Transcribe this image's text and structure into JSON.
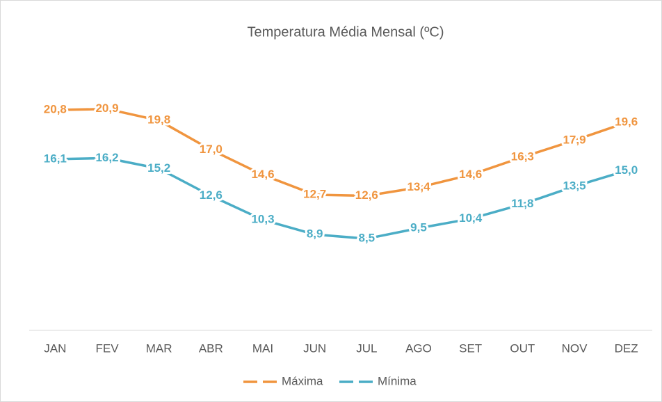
{
  "chart_data": {
    "type": "line",
    "title": "Temperatura Média Mensal (ºC)",
    "categories": [
      "JAN",
      "FEV",
      "MAR",
      "ABR",
      "MAI",
      "JUN",
      "JUL",
      "AGO",
      "SET",
      "OUT",
      "NOV",
      "DEZ"
    ],
    "series": [
      {
        "name": "Máxima",
        "color": "#f0953f",
        "values": [
          20.8,
          20.9,
          19.8,
          17.0,
          14.6,
          12.7,
          12.6,
          13.4,
          14.6,
          16.3,
          17.9,
          19.6
        ],
        "value_labels": [
          "20,8",
          "20,9",
          "19,8",
          "17,0",
          "14,6",
          "12,7",
          "12,6",
          "13,4",
          "14,6",
          "16,3",
          "17,9",
          "19,6"
        ]
      },
      {
        "name": "Mínima",
        "color": "#4badc6",
        "values": [
          16.1,
          16.2,
          15.2,
          12.6,
          10.3,
          8.9,
          8.5,
          9.5,
          10.4,
          11.8,
          13.5,
          15.0
        ],
        "value_labels": [
          "16,1",
          "16,2",
          "15,2",
          "12,6",
          "10,3",
          "8,9",
          "8,5",
          "9,5",
          "10,4",
          "11,8",
          "13,5",
          "15,0"
        ]
      }
    ],
    "ylim": [
      0,
      25
    ],
    "legend": "bottom"
  }
}
